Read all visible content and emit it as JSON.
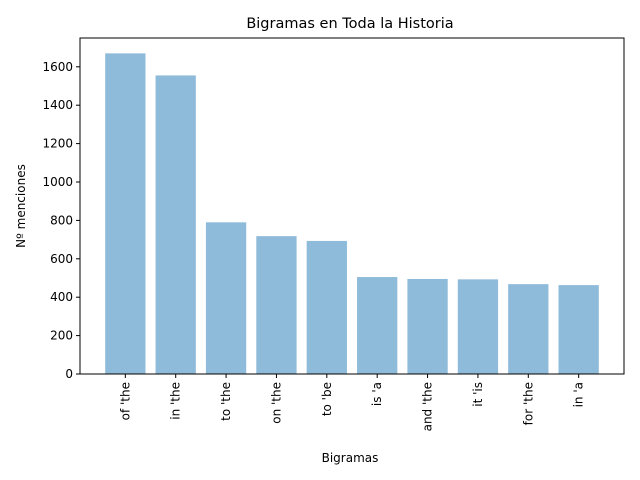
{
  "chart_data": {
    "type": "bar",
    "title": "Bigramas en Toda la Historia",
    "xlabel": "Bigramas",
    "ylabel": "Nº menciones",
    "categories": [
      "of 'the",
      "in 'the",
      "to 'the",
      "on 'the",
      "to 'be",
      "is 'a",
      "and 'the",
      "it 'is",
      "for 'the",
      "in 'a"
    ],
    "values": [
      1670,
      1555,
      790,
      718,
      693,
      505,
      495,
      493,
      468,
      463
    ],
    "ylim": [
      0,
      1750
    ],
    "yticks": [
      0,
      200,
      400,
      600,
      800,
      1000,
      1200,
      1400,
      1600
    ],
    "bar_color": "#8fbbda",
    "grid": false,
    "legend": false
  }
}
